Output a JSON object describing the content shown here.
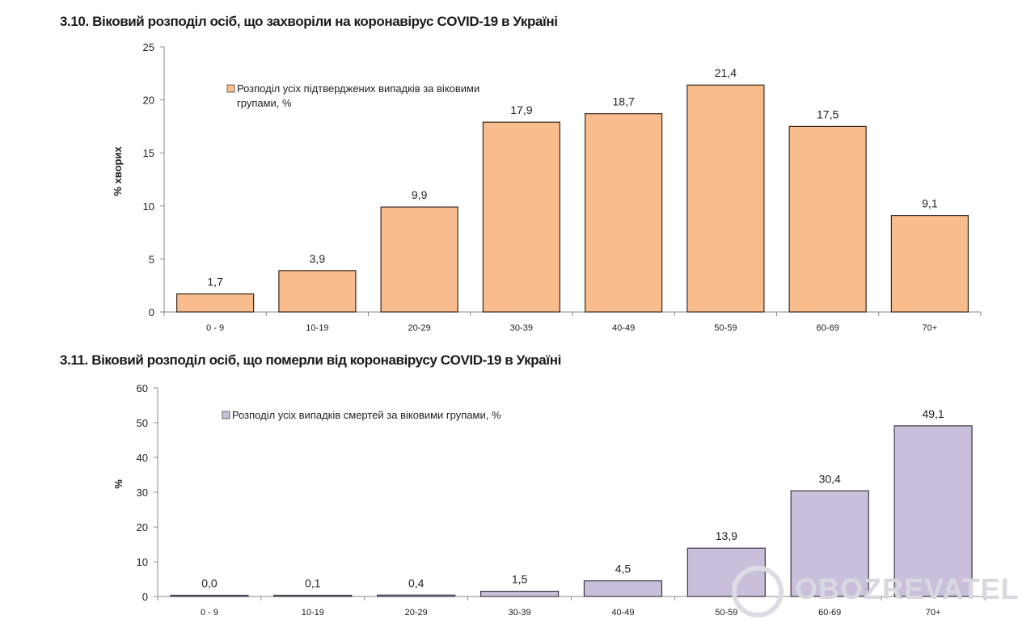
{
  "watermark": "OBOZREVATEL",
  "chart_data": [
    {
      "type": "bar",
      "title": "3.10.  Віковий розподіл осіб, що захворіли на коронавірус COVID-19 в Україні",
      "xlabel": "",
      "ylabel": "% хворих",
      "ylim": [
        0,
        25
      ],
      "yticks": [
        0,
        5,
        10,
        15,
        20,
        25
      ],
      "categories": [
        "0 - 9",
        "10-19",
        "20-29",
        "30-39",
        "40-49",
        "50-59",
        "60-69",
        "70+"
      ],
      "series": [
        {
          "name": "Розподіл усіх підтверджених випадків за віковими групами, %",
          "values": [
            1.7,
            3.9,
            9.9,
            17.9,
            18.7,
            21.4,
            17.5,
            9.1
          ],
          "labels": [
            "1,7",
            "3,9",
            "9,9",
            "17,9",
            "18,7",
            "21,4",
            "17,5",
            "9,1"
          ],
          "color": "#f9bc8c",
          "stroke": "#3a2a20"
        }
      ],
      "legend": {
        "position": "top-left",
        "lines": [
          "Розподіл усіх підтверджених випадків за віковими",
          "групами, %"
        ]
      },
      "grid": false
    },
    {
      "type": "bar",
      "title": "3.11.  Віковий розподіл осіб, що померли від коронавірусу COVID-19 в Україні",
      "xlabel": "",
      "ylabel": "%",
      "ylim": [
        0,
        60
      ],
      "yticks": [
        0,
        10,
        20,
        30,
        40,
        50,
        60
      ],
      "categories": [
        "0 - 9",
        "10-19",
        "20-29",
        "30-39",
        "40-49",
        "50-59",
        "60-69",
        "70+"
      ],
      "series": [
        {
          "name": "Розподіл усіх випадків смертей за віковими групами, %",
          "values": [
            0.0,
            0.1,
            0.4,
            1.5,
            4.5,
            13.9,
            30.4,
            49.1
          ],
          "labels": [
            "0,0",
            "0,1",
            "0,4",
            "1,5",
            "4,5",
            "13,9",
            "30,4",
            "49,1"
          ],
          "color": "#c9bfdb",
          "stroke": "#3c3846"
        }
      ],
      "legend": {
        "position": "top-left",
        "lines": [
          "Розподіл усіх випадків смертей за віковими групами, %"
        ]
      },
      "grid": false
    }
  ]
}
